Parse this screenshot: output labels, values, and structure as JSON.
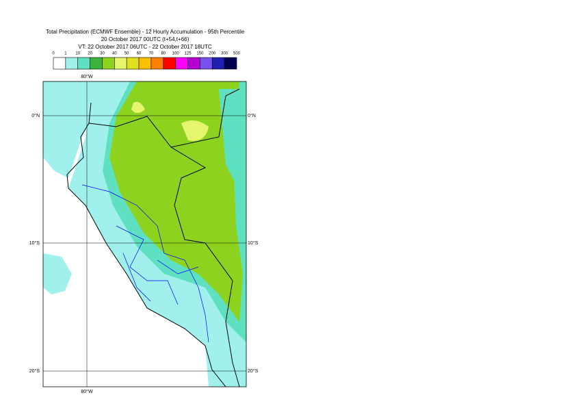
{
  "header": {
    "lines": [
      "Total Precipitation (ECMWF Ensemble) - 12 Hourly Accumulation - 95th Percentile",
      "20 October 2017 00UTC (t+54,t+66)",
      "VT: 22 October 2017 06UTC - 22 October 2017 18UTC"
    ]
  },
  "legend": {
    "labels": [
      "0",
      "1",
      "10",
      "20",
      "30",
      "40",
      "50",
      "60",
      "70",
      "80",
      "100",
      "125",
      "150",
      "200",
      "300",
      "500"
    ],
    "colors": [
      "#ffffff",
      "#a0f0ee",
      "#5fe0c0",
      "#3cb43c",
      "#8cd21e",
      "#e6f56e",
      "#e0e01e",
      "#ffbe00",
      "#ff8000",
      "#ff0000",
      "#ff00ff",
      "#b400d2",
      "#7850f0",
      "#2020b0",
      "#000050"
    ]
  },
  "map": {
    "lon_label": "80°W",
    "lat_labels": [
      "0°N",
      "10°S",
      "20°S"
    ]
  }
}
